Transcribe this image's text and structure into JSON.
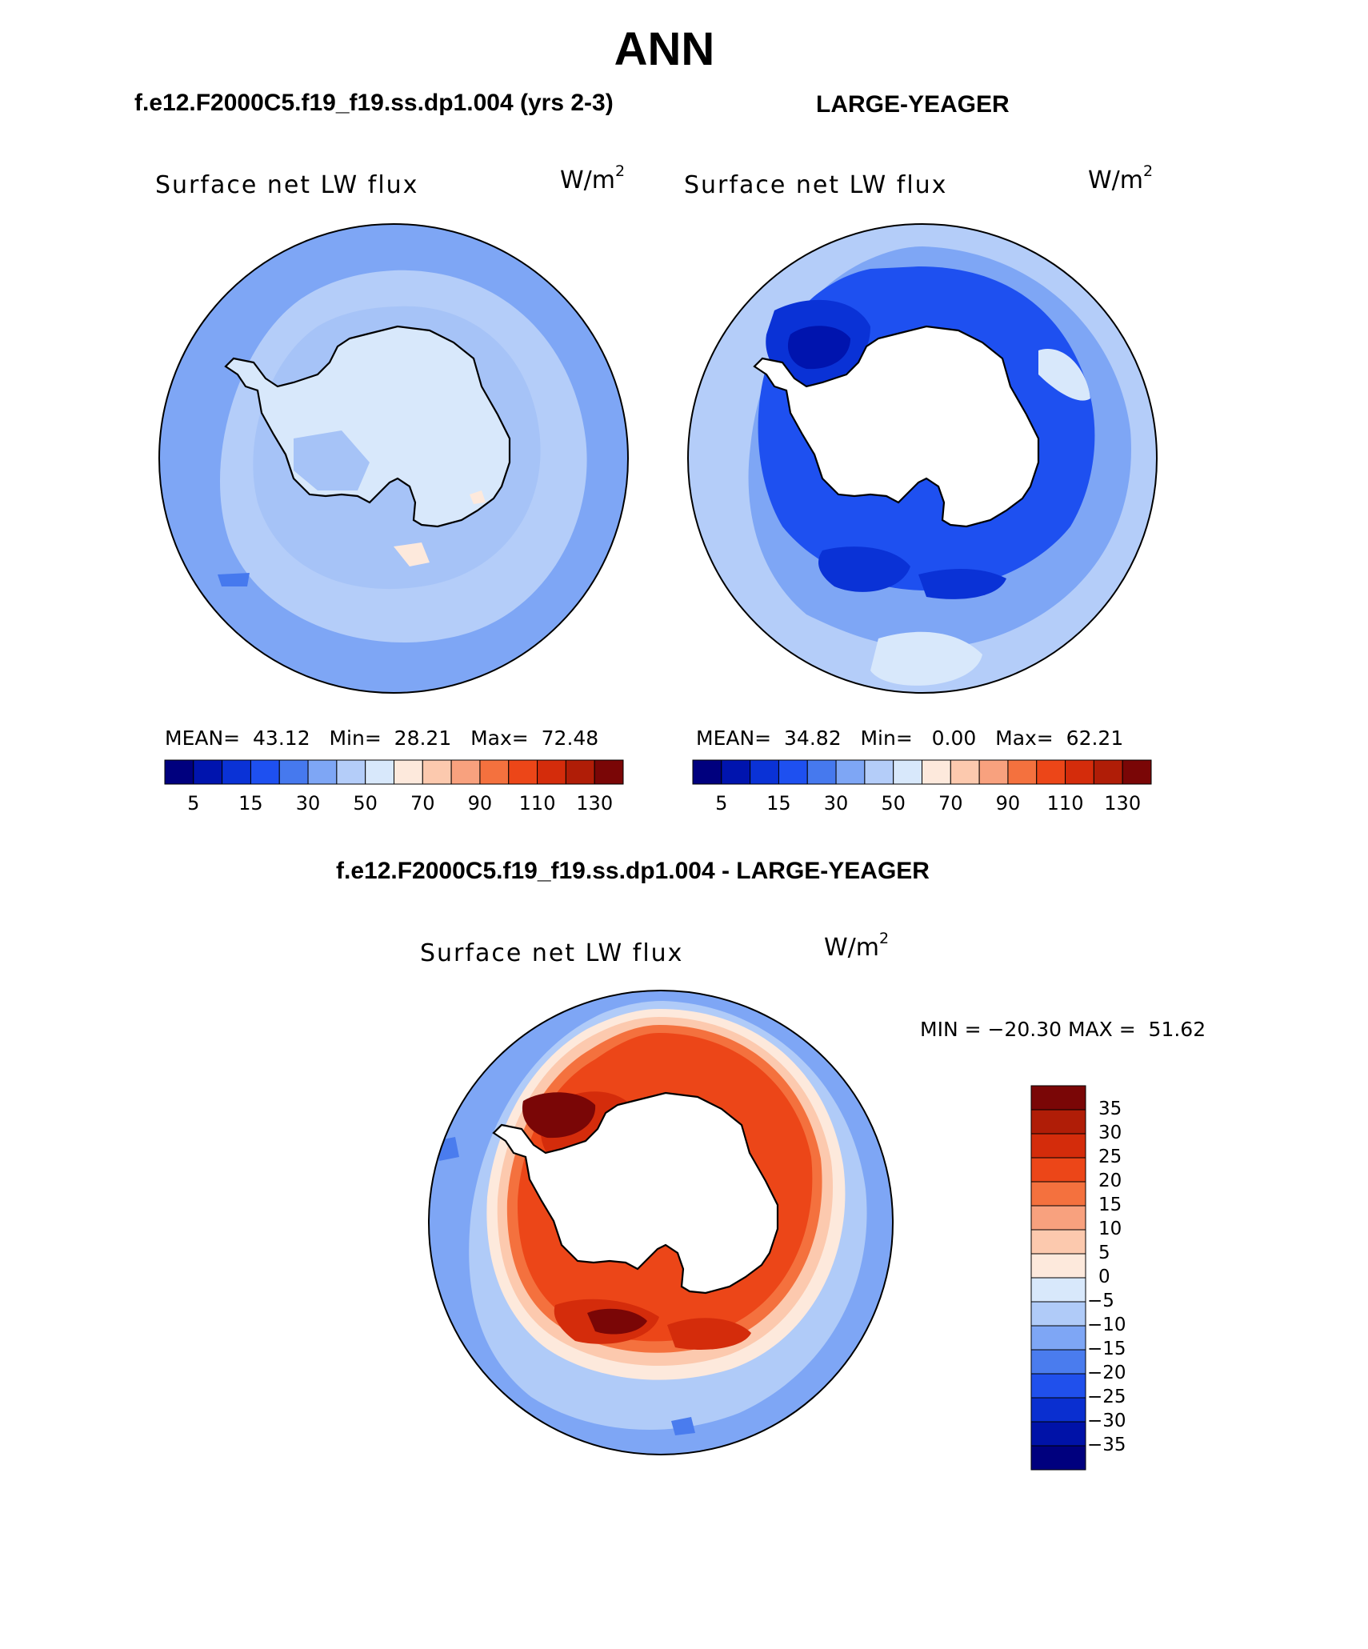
{
  "page": {
    "title": "ANN",
    "panel1_case": "f.e12.F2000C5.f19_f19.ss.dp1.004 (yrs 2-3)",
    "panel2_case": "LARGE-YEAGER",
    "diff_case": "f.e12.F2000C5.f19_f19.ss.dp1.004 - LARGE-YEAGER"
  },
  "panels": [
    {
      "variable": "Surface net LW flux",
      "units": "W/m",
      "units_sup": "2",
      "mean_label": "MEAN=",
      "mean": "43.12",
      "min_label": "Min=",
      "min": "28.21",
      "max_label": "Max=",
      "max": "72.48"
    },
    {
      "variable": "Surface net LW flux",
      "units": "W/m",
      "units_sup": "2",
      "mean_label": "MEAN=",
      "mean": "34.82",
      "min_label": "Min=",
      "min": "0.00",
      "max_label": "Max=",
      "max": "62.21"
    }
  ],
  "diff_panel": {
    "variable": "Surface net LW flux",
    "units": "W/m",
    "units_sup": "2",
    "minmax": "MIN = −20.30 MAX =  51.62"
  },
  "colorbar_abs": {
    "colors": [
      "#00007e",
      "#0014ae",
      "#0a32d6",
      "#1e50f0",
      "#4679ee",
      "#7ea6f5",
      "#b4cdf9",
      "#d8e8fb",
      "#fde9dc",
      "#fcc9ae",
      "#f8a17e",
      "#f4713e",
      "#ec4618",
      "#d42c0b",
      "#b01d07",
      "#7a0606"
    ],
    "tick_labels": [
      "5",
      "15",
      "30",
      "50",
      "70",
      "90",
      "110",
      "130"
    ]
  },
  "colorbar_diff": {
    "colors": [
      "#00007e",
      "#0012a8",
      "#0a2fd0",
      "#2050ec",
      "#4a7cee",
      "#7ea6f5",
      "#b0cbf8",
      "#d8e8fb",
      "#fde9dc",
      "#fcc9ae",
      "#f8a17e",
      "#f4713e",
      "#ec4618",
      "#d42c0b",
      "#b01d07",
      "#7a0606"
    ],
    "tick_labels": [
      "35",
      "30",
      "25",
      "20",
      "15",
      "10",
      "5",
      "0",
      "−5",
      "−10",
      "−15",
      "−20",
      "−25",
      "−30",
      "−35"
    ]
  },
  "map_colors": {
    "p1_outer": "#7ea6f5",
    "p1_ring": "#b4cdf9",
    "p1_land": "#d8e8fb",
    "p1_inner": "#a6c3f7",
    "p1_warm": "#fde9dc",
    "p2_outer": "#b4cdf9",
    "p2_ring": "#7ea6f5",
    "p2_dark": "#1e50f0",
    "p2_darker": "#0a32d6",
    "p2_darkest": "#0014ae",
    "land_white": "#ffffff",
    "d_outer": "#7ea6f5",
    "d_ring_light": "#b0cbf8",
    "d_ring_pale": "#fde9dc",
    "d_ring_peach": "#fcc9ae",
    "d_ring_orange": "#f4713e",
    "d_ring_red": "#ec4618",
    "d_ring_dark": "#d42c0b",
    "d_ring_darkest": "#7a0606"
  }
}
